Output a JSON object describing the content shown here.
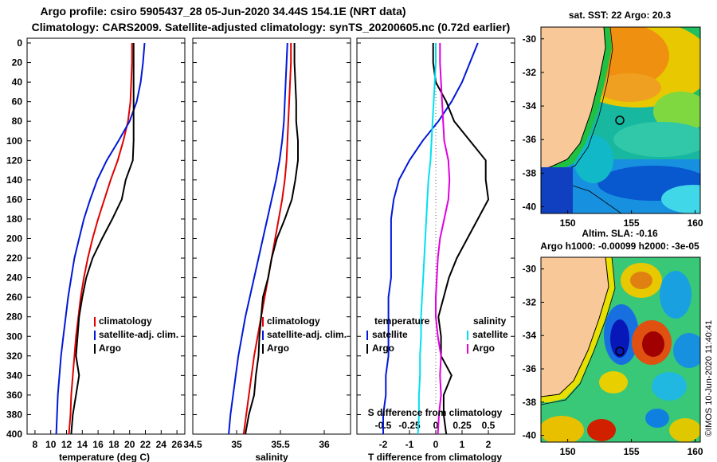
{
  "titles": {
    "line1": "Argo profile: csiro 5905437_28 05-Jun-2020 34.44S 154.1E (NRT data)",
    "line2": "Climatology: CARS2009. Satellite-adjusted climatology: synTS_20200605.nc (0.72d earlier)"
  },
  "colors": {
    "climatology": "#e00000",
    "satellite": "#0018d8",
    "argo": "#000000",
    "sat_diff": "#00e0f0",
    "sal_diff": "#e000e0",
    "land": "#f8c898"
  },
  "depth_axis": {
    "ticks": [
      "0",
      "20",
      "40",
      "60",
      "80",
      "100",
      "120",
      "140",
      "160",
      "180",
      "200",
      "220",
      "240",
      "260",
      "280",
      "300",
      "320",
      "340",
      "360",
      "380",
      "400"
    ]
  },
  "chart_data": [
    {
      "type": "line",
      "title": "",
      "xlabel": "temperature (deg C)",
      "ylabel": "depth",
      "xlim": [
        7,
        27
      ],
      "ylim": [
        400,
        0
      ],
      "xticks": [
        "8",
        "10",
        "12",
        "14",
        "16",
        "18",
        "20",
        "22",
        "24",
        "26"
      ],
      "legend": [
        "climatology",
        "satellite-adj. clim.",
        "Argo"
      ],
      "series": [
        {
          "name": "climatology",
          "color_key": "climatology",
          "x": [
            20.3,
            20.3,
            20.2,
            20.1,
            19.8,
            19.2,
            18.5,
            17.6,
            16.8,
            16.0,
            15.3,
            14.7,
            14.2,
            13.8,
            13.5,
            13.2,
            13.0,
            12.8,
            12.6,
            12.5,
            12.3
          ],
          "y": [
            0,
            20,
            40,
            60,
            80,
            100,
            120,
            140,
            160,
            180,
            200,
            220,
            240,
            260,
            280,
            300,
            320,
            340,
            360,
            380,
            400
          ]
        },
        {
          "name": "satellite-adj. clim.",
          "color_key": "satellite",
          "x": [
            21.9,
            21.7,
            21.4,
            20.9,
            20.0,
            18.6,
            17.1,
            15.9,
            15.0,
            14.2,
            13.6,
            13.0,
            12.6,
            12.2,
            11.9,
            11.6,
            11.3,
            11.1,
            10.9,
            10.8,
            10.7
          ],
          "y": [
            0,
            20,
            40,
            60,
            80,
            100,
            120,
            140,
            160,
            180,
            200,
            220,
            240,
            260,
            280,
            300,
            320,
            340,
            360,
            380,
            400
          ]
        },
        {
          "name": "Argo",
          "color_key": "argo",
          "x": [
            20.5,
            20.5,
            20.5,
            20.5,
            20.5,
            20.5,
            20.4,
            19.5,
            19.0,
            17.8,
            16.5,
            15.3,
            14.5,
            14.0,
            13.6,
            13.4,
            13.2,
            13.6,
            13.2,
            12.8,
            12.6
          ],
          "y": [
            0,
            20,
            40,
            60,
            80,
            100,
            120,
            140,
            160,
            180,
            200,
            220,
            240,
            260,
            280,
            300,
            320,
            340,
            360,
            380,
            400
          ]
        }
      ]
    },
    {
      "type": "line",
      "title": "",
      "xlabel": "salinity",
      "ylabel": "depth",
      "xlim": [
        34.5,
        36.3
      ],
      "ylim": [
        400,
        0
      ],
      "xticks": [
        "34.5",
        "35",
        "35.5",
        "36"
      ],
      "legend": [
        "climatology",
        "satellite-adj. clim.",
        "Argo"
      ],
      "series": [
        {
          "name": "climatology",
          "color_key": "climatology",
          "x": [
            35.62,
            35.62,
            35.61,
            35.6,
            35.59,
            35.58,
            35.57,
            35.55,
            35.52,
            35.48,
            35.44,
            35.4,
            35.36,
            35.32,
            35.28,
            35.24,
            35.2,
            35.17,
            35.14,
            35.11,
            35.08
          ],
          "y": [
            0,
            20,
            40,
            60,
            80,
            100,
            120,
            140,
            160,
            180,
            200,
            220,
            240,
            260,
            280,
            300,
            320,
            340,
            360,
            380,
            400
          ]
        },
        {
          "name": "satellite-adj. clim.",
          "color_key": "satellite",
          "x": [
            35.58,
            35.57,
            35.56,
            35.55,
            35.54,
            35.52,
            35.49,
            35.45,
            35.4,
            35.35,
            35.3,
            35.25,
            35.2,
            35.15,
            35.1,
            35.06,
            35.02,
            34.99,
            34.96,
            34.93,
            34.91
          ],
          "y": [
            0,
            20,
            40,
            60,
            80,
            100,
            120,
            140,
            160,
            180,
            200,
            220,
            240,
            260,
            280,
            300,
            320,
            340,
            360,
            380,
            400
          ]
        },
        {
          "name": "Argo",
          "color_key": "argo",
          "x": [
            35.66,
            35.66,
            35.67,
            35.68,
            35.68,
            35.7,
            35.7,
            35.67,
            35.63,
            35.55,
            35.46,
            35.4,
            35.36,
            35.3,
            35.28,
            35.26,
            35.25,
            35.22,
            35.2,
            35.14,
            35.1
          ],
          "y": [
            0,
            20,
            40,
            60,
            80,
            100,
            120,
            140,
            160,
            180,
            200,
            220,
            240,
            260,
            280,
            300,
            320,
            340,
            360,
            380,
            400
          ]
        }
      ]
    },
    {
      "type": "line",
      "title": "",
      "xlabel": "T difference from climatology",
      "x2label": "S difference from climatology",
      "ylabel": "depth",
      "xlim": [
        -3,
        3
      ],
      "ylim": [
        400,
        0
      ],
      "xticks": [
        "-2",
        "-1",
        "0",
        "1",
        "2"
      ],
      "x2lim": [
        -0.75,
        0.75
      ],
      "x2ticks": [
        "-0.5",
        "-0.25",
        "0",
        "0.25",
        "0.5"
      ],
      "legend_titles": [
        "temperature",
        "salinity"
      ],
      "legend": [
        "satellite",
        "Argo",
        "satellite",
        "Argo"
      ],
      "series": [
        {
          "name": "temperature satellite",
          "color_key": "satellite",
          "axis": "T",
          "x": [
            1.6,
            1.3,
            1.0,
            0.6,
            0.1,
            -0.5,
            -1.0,
            -1.4,
            -1.6,
            -1.7,
            -1.7,
            -1.7,
            -1.7,
            -1.8,
            -1.8,
            -1.8,
            -1.8,
            -1.9,
            -1.9,
            -2.0,
            -2.0
          ],
          "y": [
            0,
            20,
            40,
            60,
            80,
            100,
            120,
            140,
            160,
            180,
            200,
            220,
            240,
            260,
            280,
            300,
            320,
            340,
            360,
            380,
            400
          ]
        },
        {
          "name": "temperature Argo",
          "color_key": "argo",
          "axis": "T",
          "x": [
            -0.1,
            -0.1,
            0.0,
            0.4,
            0.7,
            1.3,
            1.9,
            1.9,
            2.0,
            1.6,
            1.2,
            0.8,
            0.5,
            0.3,
            0.1,
            0.2,
            0.2,
            0.6,
            0.3,
            0.3,
            0.4
          ],
          "y": [
            0,
            20,
            40,
            60,
            80,
            100,
            120,
            140,
            160,
            180,
            200,
            220,
            240,
            260,
            280,
            300,
            320,
            340,
            360,
            380,
            400
          ]
        },
        {
          "name": "salinity satellite",
          "color_key": "sal_diff_sat",
          "axis": "S",
          "x": [
            0.0,
            0.0,
            -0.01,
            -0.02,
            -0.03,
            -0.04,
            -0.05,
            -0.07,
            -0.08,
            -0.09,
            -0.1,
            -0.11,
            -0.12,
            -0.13,
            -0.14,
            -0.14,
            -0.15,
            -0.15,
            -0.16,
            -0.16,
            -0.17
          ],
          "y": [
            0,
            20,
            40,
            60,
            80,
            100,
            120,
            140,
            160,
            180,
            200,
            220,
            240,
            260,
            280,
            300,
            320,
            340,
            360,
            380,
            400
          ]
        },
        {
          "name": "salinity Argo",
          "color_key": "sal_diff",
          "axis": "S",
          "x": [
            0.04,
            0.04,
            0.05,
            0.06,
            0.07,
            0.08,
            0.12,
            0.13,
            0.12,
            0.08,
            0.04,
            0.02,
            0.01,
            0.0,
            0.0,
            0.02,
            0.05,
            0.04,
            0.05,
            0.03,
            0.02
          ],
          "y": [
            0,
            20,
            40,
            60,
            80,
            100,
            120,
            140,
            160,
            180,
            200,
            220,
            240,
            260,
            280,
            300,
            320,
            340,
            360,
            380,
            400
          ]
        }
      ]
    }
  ],
  "maps": [
    {
      "title": "sat. SST: 22 Argo: 20.3",
      "xticks": [
        "150",
        "155",
        "160"
      ],
      "yticks": [
        "-30",
        "-32",
        "-34",
        "-36",
        "-38",
        "-40"
      ],
      "float_lon": 154.1,
      "float_lat": -34.44
    },
    {
      "title_line1": "Altim. SLA: -0.16",
      "title_line2": "Argo h1000: -0.00099 h2000: -3e-05",
      "xticks": [
        "150",
        "155",
        "160"
      ],
      "yticks": [
        "-30",
        "-32",
        "-34",
        "-36",
        "-38",
        "-40"
      ],
      "float_lon": 154.1,
      "float_lat": -34.44
    }
  ],
  "watermark": "©IMOS 10-Jun-2020 11:40:41"
}
